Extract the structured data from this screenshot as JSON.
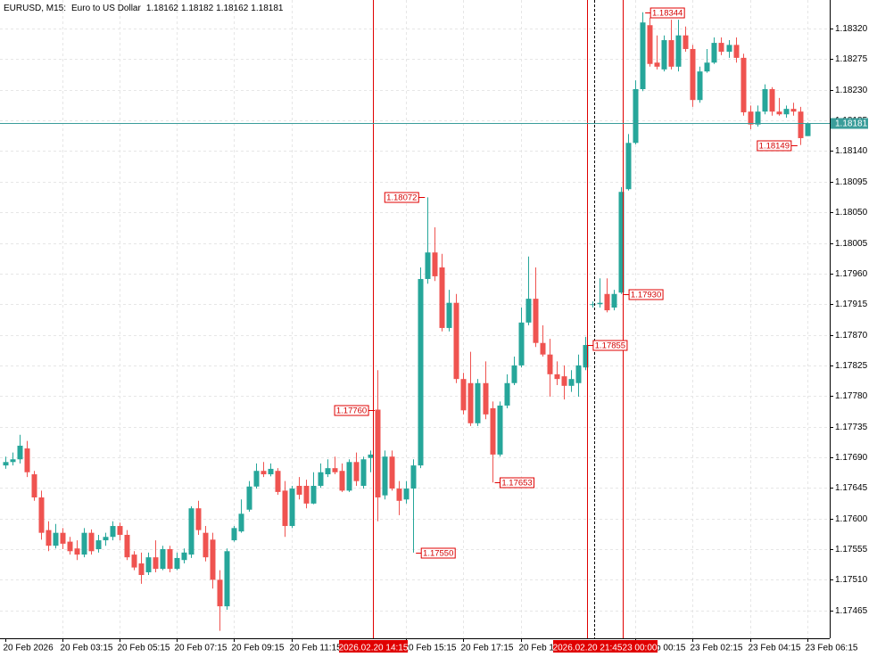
{
  "chart_data": {
    "type": "candlestick",
    "symbol": "EURUSD, M15:",
    "description": "Euro to US Dollar",
    "up_color": "#26a69a",
    "down_color": "#ef5350",
    "price_line_color": "#3a9d9a",
    "marker_color": "#e00000",
    "grid": true,
    "ylim": [
      1.17424,
      1.18362
    ],
    "yticks": [
      1.17465,
      {
        "value": 1.1751,
        "label": "1.17510"
      },
      1.17555,
      {
        "value": 1.176,
        "label": "1.17600"
      },
      1.17645,
      {
        "value": 1.1769,
        "label": "1.17690"
      },
      1.17735,
      {
        "value": 1.1778,
        "label": "1.17780"
      },
      1.17825,
      {
        "value": 1.1787,
        "label": "1.17870"
      },
      1.17915,
      {
        "value": 1.1796,
        "label": "1.17960"
      },
      1.18005,
      {
        "value": 1.1805,
        "label": "1.18050"
      },
      1.18095,
      {
        "value": 1.1814,
        "label": "1.18140"
      },
      1.18185,
      {
        "value": 1.1823,
        "label": "1.18230"
      },
      1.18275,
      {
        "value": 1.1832,
        "label": "1.18320"
      }
    ],
    "markers": [
      "2026.02.20 14:15",
      "2026.02.20 21:45",
      "23 00:00"
    ],
    "candles": [
      {
        "time": "20 Feb 2026",
        "open": 1.17678,
        "high": 1.17691,
        "low": 1.17673,
        "close": 1.17683
      },
      {
        "open": 1.17683,
        "high": 1.17697,
        "low": 1.17678,
        "close": 1.17687
      },
      {
        "open": 1.17687,
        "high": 1.17723,
        "low": 1.17681,
        "close": 1.17707
      },
      {
        "open": 1.17703,
        "high": 1.17714,
        "low": 1.17661,
        "close": 1.17668
      },
      {
        "open": 1.17665,
        "high": 1.1767,
        "low": 1.17626,
        "close": 1.17631
      },
      {
        "open": 1.17631,
        "high": 1.17641,
        "low": 1.17569,
        "close": 1.17579
      },
      {
        "open": 1.17583,
        "high": 1.17596,
        "low": 1.17552,
        "close": 1.1756
      },
      {
        "open": 1.1756,
        "high": 1.17592,
        "low": 1.17556,
        "close": 1.17579
      },
      {
        "time": "20 Feb 03:15",
        "open": 1.17579,
        "high": 1.17586,
        "low": 1.17555,
        "close": 1.17563
      },
      {
        "open": 1.17566,
        "high": 1.17573,
        "low": 1.17547,
        "close": 1.17552
      },
      {
        "open": 1.17556,
        "high": 1.17568,
        "low": 1.17539,
        "close": 1.17547
      },
      {
        "open": 1.17547,
        "high": 1.17586,
        "low": 1.17543,
        "close": 1.17579
      },
      {
        "open": 1.17579,
        "high": 1.17584,
        "low": 1.17547,
        "close": 1.17552
      },
      {
        "open": 1.17555,
        "high": 1.17576,
        "low": 1.1755,
        "close": 1.17568
      },
      {
        "open": 1.17568,
        "high": 1.17579,
        "low": 1.1756,
        "close": 1.17573
      },
      {
        "open": 1.17573,
        "high": 1.17596,
        "low": 1.17568,
        "close": 1.17589
      },
      {
        "time": "20 Feb 05:15",
        "open": 1.17589,
        "high": 1.17594,
        "low": 1.17568,
        "close": 1.17576
      },
      {
        "open": 1.17576,
        "high": 1.17583,
        "low": 1.17539,
        "close": 1.17543
      },
      {
        "open": 1.17547,
        "high": 1.17552,
        "low": 1.17524,
        "close": 1.17528
      },
      {
        "open": 1.17534,
        "high": 1.1755,
        "low": 1.17504,
        "close": 1.17517
      },
      {
        "open": 1.17521,
        "high": 1.1755,
        "low": 1.17517,
        "close": 1.17543
      },
      {
        "open": 1.17543,
        "high": 1.17568,
        "low": 1.17521,
        "close": 1.17526
      },
      {
        "open": 1.17526,
        "high": 1.1756,
        "low": 1.17524,
        "close": 1.17555
      },
      {
        "open": 1.17555,
        "high": 1.1756,
        "low": 1.17521,
        "close": 1.17526
      },
      {
        "time": "20 Feb 07:15",
        "open": 1.17526,
        "high": 1.1755,
        "low": 1.17524,
        "close": 1.17542
      },
      {
        "open": 1.17539,
        "high": 1.17556,
        "low": 1.17534,
        "close": 1.1755
      },
      {
        "open": 1.17547,
        "high": 1.17618,
        "low": 1.17542,
        "close": 1.17615
      },
      {
        "open": 1.17615,
        "high": 1.17626,
        "low": 1.17576,
        "close": 1.17583
      },
      {
        "open": 1.17579,
        "high": 1.17589,
        "low": 1.17537,
        "close": 1.17543
      },
      {
        "open": 1.17569,
        "high": 1.17579,
        "low": 1.17497,
        "close": 1.1751
      },
      {
        "open": 1.1751,
        "high": 1.17524,
        "low": 1.17435,
        "close": 1.17471
      },
      {
        "open": 1.17471,
        "high": 1.17556,
        "low": 1.17466,
        "close": 1.17552
      },
      {
        "time": "20 Feb 09:15",
        "open": 1.17568,
        "high": 1.17589,
        "low": 1.17566,
        "close": 1.17586
      },
      {
        "open": 1.17581,
        "high": 1.17628,
        "low": 1.17579,
        "close": 1.17607
      },
      {
        "open": 1.17613,
        "high": 1.17655,
        "low": 1.1761,
        "close": 1.17647
      },
      {
        "open": 1.17647,
        "high": 1.17681,
        "low": 1.17644,
        "close": 1.1767
      },
      {
        "open": 1.1767,
        "high": 1.17683,
        "low": 1.17661,
        "close": 1.17665
      },
      {
        "open": 1.17665,
        "high": 1.17681,
        "low": 1.17662,
        "close": 1.17673
      },
      {
        "open": 1.1767,
        "high": 1.17674,
        "low": 1.17635,
        "close": 1.17639
      },
      {
        "open": 1.17641,
        "high": 1.17655,
        "low": 1.17573,
        "close": 1.17589
      },
      {
        "time": "20 Feb 11:15",
        "open": 1.17589,
        "high": 1.17648,
        "low": 1.17586,
        "close": 1.17644
      },
      {
        "open": 1.17648,
        "high": 1.17661,
        "low": 1.17628,
        "close": 1.17635
      },
      {
        "open": 1.17648,
        "high": 1.17657,
        "low": 1.17615,
        "close": 1.17622
      },
      {
        "open": 1.17622,
        "high": 1.17668,
        "low": 1.17621,
        "close": 1.17648
      },
      {
        "open": 1.17648,
        "high": 1.17681,
        "low": 1.17645,
        "close": 1.17668
      },
      {
        "open": 1.17665,
        "high": 1.17687,
        "low": 1.17661,
        "close": 1.17674
      },
      {
        "open": 1.17674,
        "high": 1.17691,
        "low": 1.17665,
        "close": 1.17668
      },
      {
        "open": 1.1767,
        "high": 1.17681,
        "low": 1.17639,
        "close": 1.17641
      },
      {
        "open": 1.17641,
        "high": 1.17687,
        "low": 1.17639,
        "close": 1.17683
      },
      {
        "open": 1.17683,
        "high": 1.17697,
        "low": 1.17648,
        "close": 1.17655
      },
      {
        "open": 1.17648,
        "high": 1.17691,
        "low": 1.17644,
        "close": 1.17687
      },
      {
        "open": 1.17689,
        "high": 1.177,
        "low": 1.17668,
        "close": 1.17694
      },
      {
        "open": 1.1776,
        "open_label": "1.17760",
        "high": 1.17818,
        "low": 1.17596,
        "close": 1.17631
      },
      {
        "open": 1.17634,
        "high": 1.177,
        "low": 1.17628,
        "close": 1.17691
      },
      {
        "open": 1.17691,
        "high": 1.177,
        "low": 1.17641,
        "close": 1.17644
      },
      {
        "open": 1.17644,
        "high": 1.17655,
        "low": 1.17605,
        "close": 1.17626
      },
      {
        "time": "20 Feb 15:15",
        "open": 1.17628,
        "high": 1.17655,
        "low": 1.17622,
        "close": 1.17644
      },
      {
        "open": 1.17644,
        "high": 1.17687,
        "low": 1.1755,
        "low_label": "1.17550",
        "close": 1.17678
      },
      {
        "open": 1.17678,
        "high": 1.17969,
        "low": 1.17674,
        "close": 1.17952
      },
      {
        "open": 1.17952,
        "high": 1.18072,
        "high_label": "1.18072",
        "low": 1.17945,
        "close": 1.17991
      },
      {
        "open": 1.17991,
        "high": 1.18028,
        "low": 1.17949,
        "close": 1.17956
      },
      {
        "open": 1.17969,
        "high": 1.17989,
        "low": 1.17875,
        "close": 1.1788
      },
      {
        "open": 1.1788,
        "high": 1.17936,
        "low": 1.17875,
        "close": 1.17917
      },
      {
        "open": 1.17917,
        "high": 1.1793,
        "low": 1.17799,
        "close": 1.17805
      },
      {
        "time": "20 Feb 17:15",
        "open": 1.17805,
        "high": 1.17814,
        "low": 1.17753,
        "close": 1.17759
      },
      {
        "open": 1.17799,
        "high": 1.17845,
        "low": 1.17736,
        "close": 1.1774
      },
      {
        "open": 1.1774,
        "high": 1.17805,
        "low": 1.17736,
        "close": 1.17799
      },
      {
        "open": 1.17799,
        "high": 1.17831,
        "low": 1.17746,
        "close": 1.17753
      },
      {
        "open": 1.17762,
        "high": 1.17772,
        "low": 1.17653,
        "low_label": "1.17653",
        "close": 1.17694
      },
      {
        "open": 1.17694,
        "high": 1.17772,
        "low": 1.17691,
        "close": 1.17766
      },
      {
        "open": 1.17766,
        "high": 1.17812,
        "low": 1.17762,
        "close": 1.17799
      },
      {
        "open": 1.17799,
        "high": 1.17838,
        "low": 1.17796,
        "close": 1.17825
      },
      {
        "time": "20 Feb 19:15",
        "open": 1.17825,
        "high": 1.1791,
        "low": 1.17822,
        "close": 1.17888
      },
      {
        "open": 1.17888,
        "high": 1.17985,
        "low": 1.17884,
        "close": 1.17923
      },
      {
        "open": 1.17923,
        "high": 1.17969,
        "low": 1.17852,
        "close": 1.17858
      },
      {
        "open": 1.17858,
        "high": 1.17884,
        "low": 1.17838,
        "close": 1.17841
      },
      {
        "open": 1.17841,
        "high": 1.17864,
        "low": 1.17779,
        "close": 1.17812
      },
      {
        "open": 1.17812,
        "high": 1.17831,
        "low": 1.17796,
        "close": 1.17805
      },
      {
        "open": 1.17809,
        "high": 1.17825,
        "low": 1.17775,
        "close": 1.17795
      },
      {
        "open": 1.17795,
        "high": 1.17818,
        "low": 1.17786,
        "close": 1.17805
      },
      {
        "open": 1.17799,
        "high": 1.17841,
        "low": 1.17779,
        "close": 1.17825
      },
      {
        "open": 1.17822,
        "high": 1.17867,
        "low": 1.17818,
        "close": 1.17855,
        "close_label": "1.17855"
      },
      {
        "open": 1.17914,
        "high": 1.17919,
        "low": 1.1791,
        "close": 1.17915
      },
      {
        "open": 1.17915,
        "high": 1.17953,
        "low": 1.1791,
        "close": 1.17917
      },
      {
        "open": 1.1793,
        "high": 1.17953,
        "low": 1.17903,
        "close": 1.17906
      },
      {
        "open": 1.1791,
        "high": 1.17936,
        "low": 1.17906,
        "close": 1.1793
      },
      {
        "open": 1.17932,
        "high": 1.18087,
        "low": 1.1793,
        "low_label": "1.17930",
        "close": 1.1808
      },
      {
        "open": 1.18084,
        "high": 1.18165,
        "low": 1.18082,
        "close": 1.18152
      },
      {
        "time": "23 Feb 00:15",
        "open": 1.18152,
        "high": 1.18244,
        "low": 1.1815,
        "close": 1.18231
      },
      {
        "open": 1.18231,
        "high": 1.18344,
        "high_label": "1.18344",
        "low": 1.18228,
        "close": 1.18329
      },
      {
        "open": 1.18325,
        "high": 1.18336,
        "low": 1.18264,
        "close": 1.18268
      },
      {
        "open": 1.1827,
        "high": 1.1831,
        "low": 1.1826,
        "close": 1.18264
      },
      {
        "open": 1.1826,
        "high": 1.1831,
        "low": 1.18257,
        "close": 1.18303
      },
      {
        "open": 1.18303,
        "high": 1.18333,
        "low": 1.1826,
        "close": 1.18264
      },
      {
        "open": 1.18264,
        "high": 1.18333,
        "low": 1.18257,
        "close": 1.1831
      },
      {
        "open": 1.1831,
        "high": 1.18323,
        "low": 1.18286,
        "close": 1.1829
      },
      {
        "time": "23 Feb 02:15",
        "open": 1.1829,
        "high": 1.18296,
        "low": 1.18205,
        "close": 1.18215
      },
      {
        "open": 1.18215,
        "high": 1.18264,
        "low": 1.18211,
        "close": 1.18257
      },
      {
        "open": 1.18257,
        "high": 1.1829,
        "low": 1.18255,
        "close": 1.1827
      },
      {
        "open": 1.1827,
        "high": 1.18307,
        "low": 1.18268,
        "close": 1.18299
      },
      {
        "open": 1.18299,
        "high": 1.18307,
        "low": 1.18281,
        "close": 1.18286
      },
      {
        "open": 1.18286,
        "high": 1.18303,
        "low": 1.18277,
        "close": 1.18296
      },
      {
        "open": 1.18296,
        "high": 1.18307,
        "low": 1.1827,
        "close": 1.18277
      },
      {
        "open": 1.18277,
        "high": 1.18283,
        "low": 1.18192,
        "close": 1.18197
      },
      {
        "time": "23 Feb 04:15",
        "open": 1.18198,
        "high": 1.18207,
        "low": 1.18172,
        "close": 1.18179
      },
      {
        "open": 1.18179,
        "high": 1.18207,
        "low": 1.18176,
        "close": 1.18198
      },
      {
        "open": 1.18198,
        "high": 1.18238,
        "low": 1.18194,
        "close": 1.18231
      },
      {
        "open": 1.18231,
        "high": 1.18234,
        "low": 1.18192,
        "close": 1.18198
      },
      {
        "open": 1.18198,
        "high": 1.18218,
        "low": 1.18192,
        "close": 1.18194
      },
      {
        "open": 1.18194,
        "high": 1.18207,
        "low": 1.18189,
        "close": 1.18202
      },
      {
        "open": 1.18202,
        "high": 1.18211,
        "low": 1.18192,
        "close": 1.18198
      },
      {
        "open": 1.18198,
        "high": 1.18205,
        "low": 1.18149,
        "low_label": "1.18149",
        "close": 1.18159
      },
      {
        "time": "23 Feb 06:15",
        "open": 1.18162,
        "high": 1.18182,
        "low": 1.18162,
        "close": 1.18181
      }
    ]
  }
}
